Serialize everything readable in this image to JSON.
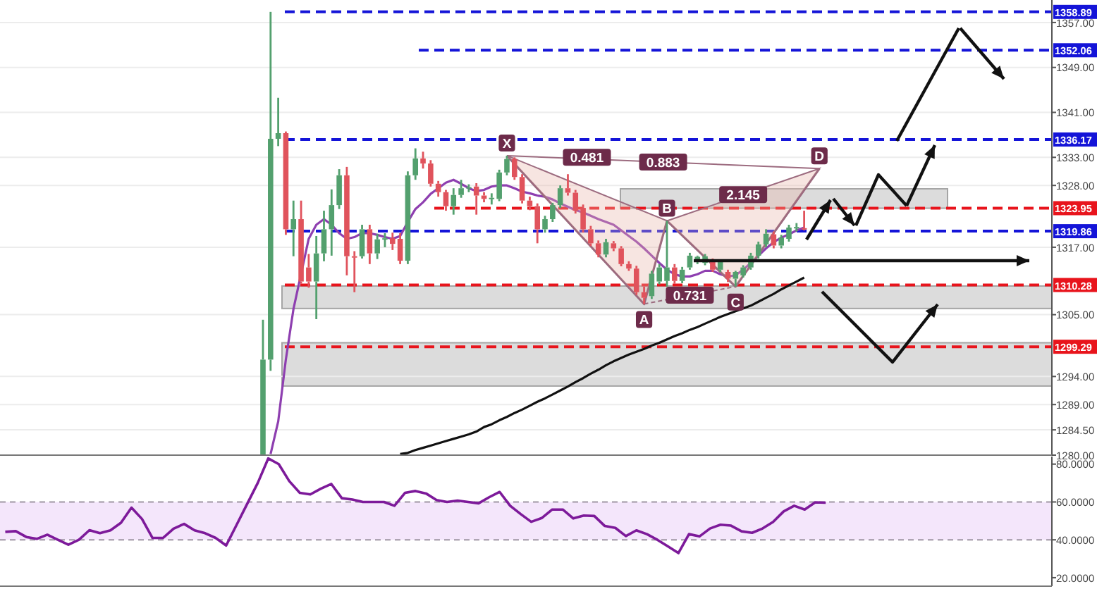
{
  "chart_data": [
    {
      "type": "candlestick",
      "categories": [
        null,
        null,
        null,
        null,
        null,
        null,
        null,
        null,
        null,
        null,
        null,
        null,
        null,
        null,
        null,
        null,
        null,
        null,
        null,
        null,
        null,
        null,
        null,
        null,
        null,
        null,
        null,
        null,
        null,
        null,
        null,
        null,
        null,
        null,
        null,
        null,
        null,
        null,
        null,
        null,
        null,
        null,
        null,
        null,
        null,
        null,
        null,
        null,
        null,
        null,
        null,
        null,
        null,
        null,
        null,
        null,
        null,
        null,
        null,
        null,
        null,
        null,
        null,
        null,
        null,
        null,
        null,
        null,
        null,
        null,
        null,
        null,
        null,
        null,
        null,
        null,
        null,
        null,
        null,
        null,
        null,
        null,
        null,
        null,
        null,
        null,
        null,
        null,
        null,
        null,
        null,
        null,
        null,
        null,
        null,
        null,
        null,
        null,
        null,
        null,
        null,
        null,
        null,
        null,
        null,
        null,
        null,
        null,
        null,
        null,
        null,
        null,
        null,
        null,
        null,
        null,
        null,
        null,
        null,
        null,
        null,
        null,
        null,
        null,
        null,
        null,
        null,
        null,
        null,
        null,
        null,
        null,
        null,
        null,
        null,
        null,
        null,
        null
      ],
      "ohlc": [
        null,
        null,
        null,
        null,
        null,
        null,
        null,
        null,
        null,
        null,
        null,
        null,
        null,
        null,
        null,
        null,
        null,
        null,
        null,
        null,
        null,
        null,
        null,
        null,
        null,
        null,
        null,
        null,
        null,
        null,
        null,
        null,
        null,
        null,
        [
          1280,
          1304.1,
          1280,
          1297
        ],
        [
          1297,
          1358.89,
          1295,
          1336.3
        ],
        [
          1336.3,
          1343.6,
          1335,
          1337.3
        ],
        [
          1337.3,
          1337.6,
          1319.2,
          1320.2
        ],
        [
          1320.2,
          1325.3,
          1315.4,
          1322
        ],
        [
          1322,
          1325.3,
          1310.5,
          1310.9
        ],
        [
          1313.4,
          1315.8,
          1309.8,
          1310.9
        ],
        [
          1310.9,
          1319,
          1304.2,
          1315.9
        ],
        [
          1315.9,
          1323.5,
          1314.5,
          1320.2
        ],
        [
          1320.2,
          1327.3,
          1315.5,
          1324.5
        ],
        [
          1324.5,
          1330.9,
          1323.8,
          1329.8
        ],
        [
          1329.8,
          1331.3,
          1312,
          1315.4
        ],
        [
          1315.4,
          1316.3,
          1309,
          1315.2
        ],
        [
          1315.4,
          1321,
          1315,
          1320.2
        ],
        [
          1320.2,
          1321,
          1314,
          1315.9
        ],
        [
          1315.9,
          1319.4,
          1314.9,
          1318.4
        ],
        [
          1318.4,
          1319.5,
          1317,
          1318.6
        ],
        [
          1318.6,
          1319.6,
          1316.5,
          1317.6
        ],
        [
          1318.5,
          1319.5,
          1314,
          1314.6
        ],
        [
          1314.6,
          1330.5,
          1314,
          1329.8
        ],
        [
          1329.8,
          1334.6,
          1329,
          1332.8
        ],
        [
          1332.8,
          1334,
          1331,
          1331.9
        ],
        [
          1331.9,
          1332.5,
          1327.8,
          1328.3
        ],
        [
          1328.3,
          1328.8,
          1326,
          1326.8
        ],
        [
          1326.8,
          1327.2,
          1323.5,
          1324.3
        ],
        [
          1324.3,
          1327.5,
          1322.8,
          1326.3
        ],
        [
          1326.3,
          1329,
          1325.8,
          1327.5
        ],
        [
          1327.5,
          1328.2,
          1326.8,
          1327.7
        ],
        [
          1327.8,
          1328.4,
          1322.8,
          1326.2
        ],
        [
          1326.2,
          1326.8,
          1325,
          1325.6
        ],
        [
          1325.6,
          1326.6,
          1324.6,
          1325.8
        ],
        [
          1325.6,
          1330.8,
          1325.2,
          1330.3
        ],
        [
          1330.3,
          1333.3,
          1329.8,
          1332.7
        ],
        [
          1332.7,
          1333,
          1329,
          1329.5
        ],
        [
          1329.5,
          1330,
          1324.8,
          1325.3
        ],
        [
          1325.3,
          1326,
          1323.6,
          1324.3
        ],
        [
          1324.3,
          1324.8,
          1317.7,
          1320.2
        ],
        [
          1320.2,
          1322.6,
          1319.6,
          1322
        ],
        [
          1322,
          1324.9,
          1321.5,
          1324.5
        ],
        [
          1324.5,
          1328,
          1324,
          1327.5
        ],
        [
          1327.5,
          1330,
          1326.2,
          1326.7
        ],
        [
          1326.7,
          1327.2,
          1323,
          1323.5
        ],
        [
          1324,
          1324.6,
          1319.6,
          1320.2
        ],
        [
          1320.2,
          1320.8,
          1317.2,
          1317.7
        ],
        [
          1317.7,
          1318.2,
          1315.2,
          1315.7
        ],
        [
          1315.7,
          1318.5,
          1315.2,
          1317.9
        ],
        [
          1317.7,
          1318.1,
          1316.3,
          1316.8
        ],
        [
          1316.8,
          1317.2,
          1313.6,
          1314
        ],
        [
          1314,
          1314.5,
          1312.8,
          1313.2
        ],
        [
          1313.2,
          1313.7,
          1308.5,
          1309
        ],
        [
          1309,
          1310,
          1306.9,
          1308
        ],
        [
          1308.3,
          1312.8,
          1307.8,
          1312.3
        ],
        [
          1310.9,
          1314,
          1310.4,
          1313.4
        ],
        [
          1311,
          1321.7,
          1310,
          1313.4
        ],
        [
          1313.4,
          1314,
          1310.5,
          1311
        ],
        [
          1311,
          1313.5,
          1310.6,
          1313
        ],
        [
          1313.4,
          1316,
          1313,
          1315.5
        ],
        [
          1314.6,
          1315.5,
          1314,
          1315.3
        ],
        [
          1314.2,
          1315.8,
          1313.8,
          1315.4
        ],
        [
          1314.5,
          1315,
          1312.6,
          1313
        ],
        [
          1313,
          1314.8,
          1312.6,
          1314.5
        ],
        [
          1312.6,
          1313,
          1310.8,
          1311.4
        ],
        [
          1311.4,
          1312.8,
          1310,
          1312.6
        ],
        [
          1312,
          1313.8,
          1311.6,
          1313.4
        ],
        [
          1313.4,
          1316,
          1313,
          1315.5
        ],
        [
          1315.5,
          1318,
          1315,
          1317.5
        ],
        [
          1317.5,
          1320.2,
          1317,
          1319.4
        ],
        [
          1319.3,
          1319.8,
          1316.8,
          1317.3
        ],
        [
          1317.3,
          1319.2,
          1316.8,
          1318.7
        ],
        [
          1318.5,
          1321,
          1318,
          1320.5
        ],
        [
          1320.5,
          1321.3,
          1319.8,
          1320.6
        ],
        [
          1320.4,
          1323.5,
          1320,
          1320.3
        ],
        null,
        null,
        null,
        null,
        null,
        null,
        null,
        null,
        null,
        null,
        null,
        null,
        null,
        null,
        null,
        null,
        null,
        null,
        null,
        null,
        null,
        null,
        null,
        null,
        null,
        null,
        null,
        null,
        null,
        null,
        null,
        null
      ],
      "colors": [
        null,
        null,
        null,
        null,
        null,
        null,
        null,
        null,
        null,
        null,
        null,
        null,
        null,
        null,
        null,
        null,
        null,
        null,
        null,
        null,
        null,
        null,
        null,
        null,
        null,
        null,
        null,
        null,
        null,
        null,
        null,
        null,
        null,
        null,
        "#53a06e",
        "#53a06e",
        "#53a06e",
        "#e0535c",
        "#53a06e",
        "#e0535c",
        "#e0535c",
        "#53a06e",
        "#53a06e",
        "#53a06e",
        "#53a06e",
        "#e0535c",
        "#e0535c",
        "#53a06e",
        "#e0535c",
        "#53a06e",
        "#53a06e",
        "#e0535c",
        "#e0535c",
        "#53a06e",
        "#53a06e",
        "#e0535c",
        "#e0535c",
        "#e0535c",
        "#e0535c",
        "#53a06e",
        "#53a06e",
        "#53a06e",
        "#e0535c",
        "#e0535c",
        "#53a06e",
        "#53a06e",
        "#53a06e",
        "#e0535c",
        "#e0535c",
        "#e0535c",
        "#e0535c",
        "#53a06e",
        "#53a06e",
        "#53a06e",
        "#e0535c",
        "#e0535c",
        "#e0535c",
        "#e0535c",
        "#e0535c",
        "#53a06e",
        "#e0535c",
        "#e0535c",
        "#e0535c",
        "#e0535c",
        "#e0535c",
        "#53a06e",
        "#53a06e",
        "#53a06e",
        "#e0535c",
        "#53a06e",
        "#53a06e",
        "#53a06e",
        "#53a06e",
        "#e0535c",
        "#53a06e",
        "#e0535c",
        "#53a06e",
        "#53a06e",
        "#53a06e",
        "#53a06e",
        "#53a06e",
        "#e0535c",
        "#53a06e",
        "#53a06e",
        "#53a06e",
        "#e0535c",
        null,
        null,
        null,
        null,
        null,
        null,
        null,
        null,
        null,
        null,
        null,
        null,
        null,
        null,
        null,
        null,
        null,
        null,
        null,
        null,
        null,
        null,
        null,
        null,
        null,
        null,
        null,
        null,
        null,
        null,
        null,
        null
      ],
      "series": [
        {
          "type": "line",
          "color": "#8e3fb0",
          "values": [
            null,
            null,
            null,
            null,
            null,
            null,
            null,
            null,
            null,
            null,
            null,
            null,
            null,
            null,
            null,
            null,
            null,
            null,
            null,
            null,
            null,
            null,
            null,
            null,
            null,
            null,
            null,
            null,
            null,
            null,
            null,
            null,
            null,
            null,
            null,
            1280.2,
            1286,
            1297,
            1306,
            null,
            1318.5,
            1321,
            1322,
            1321,
            1319.5,
            1318.5,
            1318.8,
            1319.5,
            1319.5,
            1319.2,
            1318.8,
            1318.5,
            1319,
            1321.5,
            1323.8,
            1325,
            1326.5,
            1327.5,
            1328.5,
            1329,
            1328.3,
            1327.5,
            1327,
            1327.2,
            1327.8,
            1328,
            1328,
            1327.5,
            1326.9,
            1326.6,
            1326.2,
            1326,
            1325.5,
            1324.8,
            1324.2,
            1323.6,
            1323.2,
            1322.6,
            1322,
            1321.5,
            1321,
            1320,
            1319,
            1318,
            1316.8,
            1315.5,
            1314.2,
            1313,
            1312.2,
            1311.8,
            1311.8,
            1312.2,
            1312.8,
            1312.8,
            1312.2,
            1311.8,
            1312,
            1313,
            1314.2,
            1315.5,
            1316.8,
            1317.9,
            1318.7,
            1319.3,
            1320,
            1320.5,
            null,
            null,
            null,
            null,
            null,
            null,
            null,
            null,
            null,
            null,
            null,
            null,
            null,
            null,
            null,
            null,
            null,
            null,
            null,
            null,
            null,
            null,
            null,
            null,
            null,
            null,
            null,
            null,
            null,
            null,
            null,
            null
          ]
        },
        {
          "type": "line",
          "color": "#111111",
          "values": [
            null,
            null,
            null,
            null,
            null,
            null,
            null,
            null,
            null,
            null,
            null,
            null,
            null,
            null,
            null,
            null,
            null,
            null,
            null,
            null,
            null,
            null,
            null,
            null,
            null,
            null,
            null,
            null,
            null,
            null,
            null,
            null,
            null,
            null,
            null,
            null,
            null,
            null,
            null,
            null,
            null,
            null,
            null,
            null,
            null,
            null,
            null,
            null,
            null,
            null,
            null,
            null,
            1280.2,
            1280.4,
            1280.9,
            1281.3,
            1281.7,
            1282.1,
            1282.5,
            1282.9,
            1283.3,
            1283.7,
            1284.2,
            1285,
            1285.5,
            1286.2,
            1286.8,
            1287.5,
            1288.1,
            1288.8,
            1289.5,
            1290.1,
            1290.8,
            1291.5,
            1292.2,
            1293,
            1293.7,
            1294.5,
            1295.2,
            1296,
            1296.7,
            1297.3,
            1297.9,
            1298.4,
            1298.9,
            1299.5,
            1300,
            1300.6,
            1301.2,
            1301.7,
            1302.3,
            1302.8,
            1303.4,
            1304,
            1304.6,
            1305.1,
            1305.6,
            1306.1,
            1306.6,
            1307.3,
            1308,
            1308.7,
            1309.5,
            1310.2,
            1310.9,
            1311.6,
            null,
            null,
            null,
            null,
            null,
            null,
            null,
            null,
            null,
            null,
            null,
            null,
            null,
            null,
            null,
            null,
            null,
            null,
            null,
            null,
            null,
            null,
            null,
            null,
            null,
            null,
            null,
            null,
            null,
            null,
            null,
            null
          ]
        },
        {
          "type": "line",
          "color": "#9c6b7f",
          "values": [
            null,
            null,
            null,
            null,
            null,
            null,
            null,
            null,
            null,
            null,
            null,
            null,
            null,
            null,
            null,
            null,
            null,
            null,
            null,
            null,
            null,
            null,
            null,
            null,
            null,
            null,
            null,
            null,
            null,
            null,
            null,
            null,
            null,
            null,
            null,
            null,
            null,
            null,
            null,
            null,
            null,
            null,
            null,
            null,
            null,
            null,
            null,
            null,
            null,
            null,
            null,
            null,
            null,
            null,
            null,
            null,
            null,
            null,
            null,
            null,
            null,
            null,
            null,
            null,
            null,
            null,
            1333.3,
            null,
            null,
            null,
            null,
            null,
            null,
            null,
            null,
            null,
            null,
            null,
            null,
            null,
            null,
            null,
            null,
            null,
            1306.9,
            null,
            null,
            1321.7,
            null,
            null,
            null,
            null,
            null,
            null,
            null,
            null,
            1310,
            null,
            null,
            null,
            null,
            null,
            null,
            null,
            null,
            null,
            null,
            1331,
            null,
            null,
            null,
            null,
            null,
            null,
            null,
            null,
            null,
            null,
            null,
            null,
            null,
            null,
            null,
            null,
            null,
            null,
            null,
            null,
            null,
            null,
            null,
            null,
            null,
            null,
            null,
            null,
            null,
            null
          ]
        }
      ],
      "ylim": [
        1280,
        1361
      ],
      "yticks": [
        {
          "value": 1280,
          "label": "1280.00"
        },
        {
          "value": 1284.5,
          "label": "1284.50"
        },
        {
          "value": 1289,
          "label": "1289.00"
        },
        {
          "value": 1294,
          "label": "1294.00"
        },
        {
          "value": 1305,
          "label": "1305.00"
        },
        {
          "value": 1317,
          "label": "1317.00"
        },
        {
          "value": 1328,
          "label": "1328.00"
        },
        {
          "value": 1333,
          "label": "1333.00"
        },
        {
          "value": 1341,
          "label": "1341.00"
        },
        {
          "value": 1349,
          "label": "1349.00"
        },
        {
          "value": 1357,
          "label": "1357.00"
        }
      ],
      "grid": "y",
      "tick_labels": "y",
      "ref_lines": [
        {
          "axis": "y",
          "value": 1358.89,
          "label": "1358.89",
          "color": "#1414d8",
          "line_style": "dashed"
        },
        {
          "axis": "y",
          "value": 1352.06,
          "label": "1352.06",
          "color": "#1414d8",
          "line_style": "dashed"
        },
        {
          "axis": "y",
          "value": 1336.17,
          "label": "1336.17",
          "color": "#1414d8",
          "line_style": "dashed"
        },
        {
          "axis": "y",
          "value": 1323.95,
          "label": "1323.95",
          "color": "#e8141c",
          "line_style": "dashed"
        },
        {
          "axis": "y",
          "value": 1319.86,
          "label": "1319.86",
          "color": "#1414d8",
          "line_style": "dashed"
        },
        {
          "axis": "y",
          "value": 1310.28,
          "label": "1310.28",
          "color": "#e8141c",
          "line_style": "dashed"
        },
        {
          "axis": "y",
          "value": 1299.29,
          "label": "1299.29",
          "color": "#e8141c",
          "line_style": "dashed"
        }
      ],
      "bands": [
        {
          "axis": "y",
          "from": 1306.1,
          "to": 1310.1,
          "color": "#dcdcdc"
        },
        {
          "axis": "y",
          "from": 1292.3,
          "to": 1300,
          "color": "#dcdcdc"
        },
        {
          "axis": "y",
          "from": 1323.95,
          "to": 1327.4,
          "color": "#dcdcdc"
        }
      ],
      "annotations": [
        "X",
        "A",
        "B",
        "C",
        "D",
        "0.883",
        "0.481",
        "2.145",
        "0.731"
      ]
    },
    {
      "type": "line",
      "categories": [
        null,
        null,
        null,
        null,
        null,
        null,
        null,
        null,
        null,
        null,
        null,
        null,
        null,
        null,
        null,
        null,
        null,
        null,
        null,
        null,
        null,
        null,
        null,
        null,
        null,
        null,
        null,
        null,
        null,
        null,
        null,
        null,
        null,
        null,
        null,
        null,
        null,
        null,
        null,
        null,
        null,
        null,
        null,
        null,
        null,
        null,
        null,
        null,
        null,
        null,
        null,
        null,
        null,
        null,
        null,
        null,
        null,
        null,
        null,
        null,
        null,
        null,
        null,
        null,
        null,
        null,
        null,
        null,
        null,
        null,
        null,
        null,
        null,
        null,
        null,
        null,
        null,
        null,
        null,
        null,
        null,
        null,
        null,
        null,
        null,
        null,
        null,
        null,
        null,
        null,
        null,
        null,
        null,
        null,
        null,
        null,
        null,
        null,
        null,
        null
      ],
      "series": [
        {
          "color": "#7d1a9a",
          "values": [
            44.2,
            44.6,
            41.5,
            40.5,
            42.7,
            40,
            37.4,
            40,
            45.1,
            43.5,
            45,
            49,
            57,
            51,
            41,
            41,
            45.9,
            48.4,
            45,
            43.5,
            41,
            37,
            48,
            59,
            70,
            83,
            80,
            71,
            64.8,
            64,
            67,
            69.5,
            62,
            61.3,
            60,
            60,
            60,
            58,
            64.8,
            65.8,
            64.5,
            61,
            60,
            60.7,
            60,
            59.3,
            62.5,
            65.3,
            58,
            53.6,
            49.5,
            51.5,
            56,
            56,
            51.3,
            52.8,
            52.6,
            47.3,
            46.3,
            42,
            45,
            43,
            40,
            36.5,
            33,
            43,
            41.8,
            46,
            48,
            47.5,
            44.5,
            43.7,
            46,
            49.5,
            55,
            58,
            56,
            59.8,
            59.6,
            null,
            null,
            null,
            null,
            null,
            null,
            null,
            null,
            null,
            null,
            null,
            null,
            null,
            null,
            null,
            null,
            null,
            null,
            null,
            null,
            null
          ]
        }
      ],
      "ylim": [
        15.5,
        84
      ],
      "yticks": [
        {
          "value": 20,
          "label": "20.0000"
        },
        {
          "value": 40,
          "label": "40.0000"
        },
        {
          "value": 60,
          "label": "60.0000"
        },
        {
          "value": 80,
          "label": "80.0000"
        }
      ],
      "tick_labels": "y",
      "bands": [
        {
          "axis": "y",
          "from": 40,
          "to": 60,
          "color": "#f4e6fb"
        }
      ]
    }
  ]
}
